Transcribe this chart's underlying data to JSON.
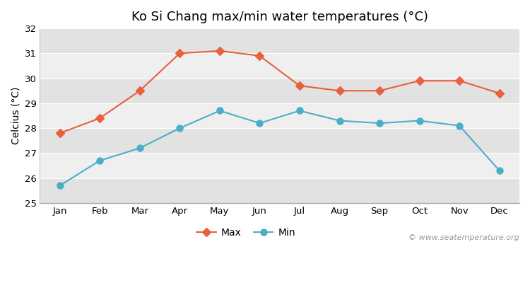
{
  "title": "Ko Si Chang max/min water temperatures (°C)",
  "ylabel": "Celcius (°C)",
  "months": [
    "Jan",
    "Feb",
    "Mar",
    "Apr",
    "May",
    "Jun",
    "Jul",
    "Aug",
    "Sep",
    "Oct",
    "Nov",
    "Dec"
  ],
  "max_temps": [
    27.8,
    28.4,
    29.5,
    31.0,
    31.1,
    30.9,
    29.7,
    29.5,
    29.5,
    29.9,
    29.9,
    29.4
  ],
  "min_temps": [
    25.7,
    26.7,
    27.2,
    28.0,
    28.7,
    28.2,
    28.7,
    28.3,
    28.2,
    28.3,
    28.1,
    26.3
  ],
  "max_color": "#e8603c",
  "min_color": "#4baec8",
  "fig_bg_color": "#ffffff",
  "band_light": "#efefef",
  "band_dark": "#e2e2e2",
  "ylim": [
    25,
    32
  ],
  "yticks": [
    25,
    26,
    27,
    28,
    29,
    30,
    31,
    32
  ],
  "watermark": "© www.seatemperature.org",
  "title_fontsize": 13,
  "label_fontsize": 10,
  "tick_fontsize": 9.5,
  "watermark_fontsize": 8,
  "legend_max": "Max",
  "legend_min": "Min"
}
